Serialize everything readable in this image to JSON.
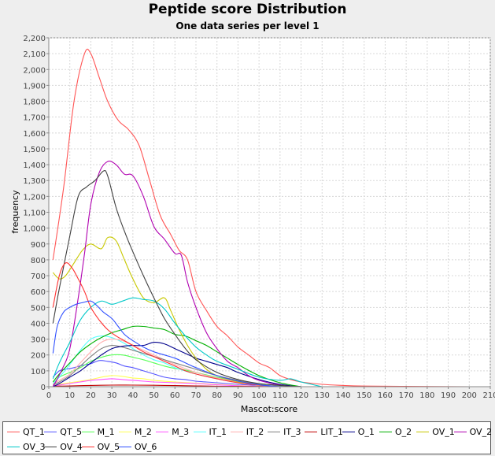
{
  "chart_data": {
    "type": "line",
    "title": "Peptide score Distribution",
    "subtitle": "One data series per level 1",
    "xlabel": "Mascot:score",
    "ylabel": "frequency",
    "xlim": [
      0,
      210
    ],
    "ylim": [
      0,
      2200
    ],
    "xticks": [
      "0",
      "10",
      "20",
      "30",
      "40",
      "50",
      "60",
      "70",
      "80",
      "90",
      "100",
      "110",
      "120",
      "130",
      "140",
      "150",
      "160",
      "170",
      "180",
      "190",
      "200",
      "210"
    ],
    "yticks": [
      "0",
      "100",
      "200",
      "300",
      "400",
      "500",
      "600",
      "700",
      "800",
      "900",
      "1,000",
      "1,100",
      "1,200",
      "1,300",
      "1,400",
      "1,500",
      "1,600",
      "1,700",
      "1,800",
      "1,900",
      "2,000",
      "2,100",
      "2,200"
    ],
    "grid": true,
    "legend_position": "bottom",
    "series": [
      {
        "name": "QT_1",
        "color": "#ff5555",
        "x": [
          2,
          7,
          12,
          17,
          20,
          24,
          28,
          33,
          38,
          43,
          48,
          53,
          58,
          62,
          66,
          70,
          75,
          80,
          85,
          90,
          95,
          100,
          105,
          110,
          115,
          120,
          130,
          140,
          150,
          170,
          200
        ],
        "y": [
          800,
          1250,
          1800,
          2100,
          2100,
          1950,
          1800,
          1680,
          1620,
          1520,
          1300,
          1080,
          960,
          860,
          800,
          600,
          480,
          380,
          320,
          250,
          200,
          150,
          120,
          70,
          45,
          30,
          15,
          8,
          4,
          2,
          0
        ]
      },
      {
        "name": "QT_5",
        "color": "#5555ff",
        "x": [
          2,
          5,
          8,
          12,
          16,
          20,
          24,
          28,
          32,
          36,
          40,
          45,
          50,
          55,
          60,
          65,
          70,
          80,
          90,
          100,
          110,
          120
        ],
        "y": [
          60,
          100,
          110,
          120,
          135,
          145,
          165,
          160,
          150,
          130,
          120,
          100,
          80,
          60,
          50,
          45,
          35,
          25,
          15,
          8,
          3,
          0
        ]
      },
      {
        "name": "M_1",
        "color": "#55ff55",
        "x": [
          2,
          5,
          10,
          15,
          20,
          25,
          30,
          35,
          40,
          45,
          50,
          55,
          60,
          65,
          70,
          80,
          90,
          100,
          110,
          120
        ],
        "y": [
          20,
          60,
          90,
          120,
          160,
          185,
          200,
          200,
          185,
          170,
          150,
          130,
          115,
          105,
          90,
          60,
          35,
          20,
          8,
          0
        ]
      },
      {
        "name": "M_2",
        "color": "#ffff55",
        "x": [
          2,
          5,
          10,
          15,
          20,
          25,
          30,
          35,
          40,
          45,
          50,
          60,
          70,
          80,
          90,
          100,
          110
        ],
        "y": [
          5,
          15,
          25,
          35,
          45,
          60,
          70,
          65,
          55,
          50,
          40,
          30,
          22,
          15,
          8,
          4,
          0
        ]
      },
      {
        "name": "M_3",
        "color": "#ff55ff",
        "x": [
          2,
          5,
          10,
          15,
          20,
          25,
          30,
          35,
          40,
          45,
          50,
          60,
          70,
          80,
          90,
          100,
          110
        ],
        "y": [
          5,
          10,
          20,
          30,
          40,
          45,
          50,
          45,
          40,
          35,
          30,
          25,
          20,
          12,
          6,
          3,
          0
        ]
      },
      {
        "name": "IT_1",
        "color": "#55ffff",
        "x": [
          2,
          5,
          10,
          15,
          20,
          25,
          30,
          35,
          40,
          45,
          50,
          55,
          60,
          70,
          80,
          90,
          100,
          110
        ],
        "y": [
          20,
          60,
          140,
          230,
          300,
          320,
          310,
          280,
          240,
          200,
          170,
          150,
          120,
          80,
          50,
          25,
          10,
          0
        ]
      },
      {
        "name": "IT_2",
        "color": "#ffafaf",
        "x": [
          2,
          5,
          10,
          15,
          20,
          25,
          30,
          35,
          40,
          45,
          50,
          55,
          60,
          70,
          80,
          90,
          100,
          110
        ],
        "y": [
          15,
          40,
          80,
          150,
          220,
          280,
          300,
          290,
          260,
          230,
          200,
          170,
          140,
          90,
          55,
          30,
          12,
          0
        ]
      },
      {
        "name": "IT_3",
        "color": "#808080",
        "x": [
          2,
          5,
          10,
          15,
          20,
          25,
          30,
          35,
          40,
          45,
          50,
          55,
          60,
          70,
          80,
          90,
          100,
          110
        ],
        "y": [
          10,
          30,
          70,
          130,
          190,
          240,
          260,
          250,
          230,
          210,
          190,
          170,
          150,
          110,
          70,
          40,
          15,
          0
        ]
      },
      {
        "name": "LIT_1",
        "color": "#c00000",
        "x": [
          2,
          10,
          20,
          30,
          40,
          50,
          60,
          70,
          80,
          90,
          100,
          110
        ],
        "y": [
          3,
          5,
          8,
          10,
          10,
          9,
          7,
          5,
          3,
          2,
          1,
          0
        ]
      },
      {
        "name": "O_1",
        "color": "#00008b",
        "x": [
          2,
          5,
          10,
          15,
          20,
          25,
          30,
          35,
          40,
          45,
          50,
          55,
          60,
          65,
          70,
          75,
          80,
          85,
          90,
          100,
          110,
          120
        ],
        "y": [
          0,
          20,
          60,
          100,
          150,
          200,
          240,
          255,
          260,
          260,
          280,
          270,
          240,
          210,
          180,
          160,
          140,
          120,
          90,
          45,
          15,
          0
        ]
      },
      {
        "name": "O_2",
        "color": "#00b000",
        "x": [
          2,
          5,
          10,
          15,
          20,
          25,
          30,
          35,
          40,
          45,
          50,
          55,
          60,
          65,
          70,
          75,
          80,
          85,
          90,
          100,
          110,
          120
        ],
        "y": [
          30,
          80,
          150,
          220,
          270,
          310,
          340,
          360,
          380,
          380,
          370,
          360,
          330,
          320,
          290,
          260,
          220,
          180,
          140,
          70,
          25,
          0
        ]
      },
      {
        "name": "OV_1",
        "color": "#c8c800",
        "x": [
          2,
          5,
          8,
          12,
          16,
          20,
          25,
          28,
          32,
          36,
          40,
          45,
          50,
          55,
          58,
          62,
          66,
          70,
          75,
          80,
          90,
          100,
          110
        ],
        "y": [
          720,
          680,
          700,
          780,
          860,
          900,
          870,
          940,
          920,
          800,
          680,
          560,
          530,
          560,
          480,
          360,
          260,
          180,
          110,
          70,
          30,
          10,
          0
        ]
      },
      {
        "name": "OV_2",
        "color": "#b000b0",
        "x": [
          2,
          6,
          10,
          14,
          17,
          20,
          24,
          28,
          32,
          36,
          40,
          45,
          50,
          55,
          60,
          63,
          66,
          70,
          75,
          80,
          85,
          90,
          95,
          100,
          110,
          120
        ],
        "y": [
          0,
          100,
          240,
          560,
          840,
          1150,
          1350,
          1420,
          1400,
          1340,
          1330,
          1200,
          1010,
          930,
          840,
          830,
          660,
          500,
          340,
          240,
          160,
          120,
          70,
          40,
          10,
          0
        ]
      },
      {
        "name": "OV_3",
        "color": "#00c8c8",
        "x": [
          2,
          5,
          10,
          15,
          20,
          25,
          30,
          35,
          40,
          45,
          50,
          55,
          60,
          65,
          70,
          75,
          80,
          90,
          100,
          110,
          115,
          120,
          130
        ],
        "y": [
          50,
          150,
          280,
          420,
          500,
          540,
          520,
          540,
          560,
          550,
          540,
          490,
          400,
          320,
          250,
          200,
          160,
          110,
          60,
          40,
          50,
          30,
          0
        ]
      },
      {
        "name": "OV_4",
        "color": "#404040",
        "x": [
          2,
          5,
          10,
          14,
          18,
          22,
          26,
          28,
          32,
          36,
          40,
          45,
          50,
          55,
          60,
          65,
          70,
          80,
          90,
          100,
          110,
          120
        ],
        "y": [
          400,
          620,
          950,
          1200,
          1260,
          1300,
          1360,
          1330,
          1130,
          980,
          850,
          700,
          560,
          430,
          330,
          240,
          170,
          90,
          45,
          20,
          8,
          0
        ]
      },
      {
        "name": "OV_5",
        "color": "#ff3030",
        "x": [
          2,
          5,
          8,
          11,
          14,
          17,
          20,
          24,
          28,
          32,
          36,
          40,
          45,
          50,
          55,
          60,
          65,
          70,
          80,
          90,
          100,
          110
        ],
        "y": [
          500,
          700,
          780,
          750,
          680,
          600,
          500,
          420,
          360,
          320,
          290,
          260,
          220,
          190,
          160,
          130,
          100,
          80,
          50,
          25,
          10,
          0
        ]
      },
      {
        "name": "OV_6",
        "color": "#3050ff",
        "x": [
          2,
          4,
          7,
          10,
          13,
          16,
          20,
          23,
          26,
          30,
          33,
          36,
          40,
          45,
          50,
          55,
          60,
          65,
          70,
          80,
          90,
          100,
          110
        ],
        "y": [
          210,
          380,
          470,
          500,
          520,
          530,
          540,
          510,
          470,
          430,
          380,
          330,
          290,
          250,
          220,
          200,
          180,
          150,
          120,
          70,
          35,
          12,
          0
        ]
      }
    ]
  }
}
